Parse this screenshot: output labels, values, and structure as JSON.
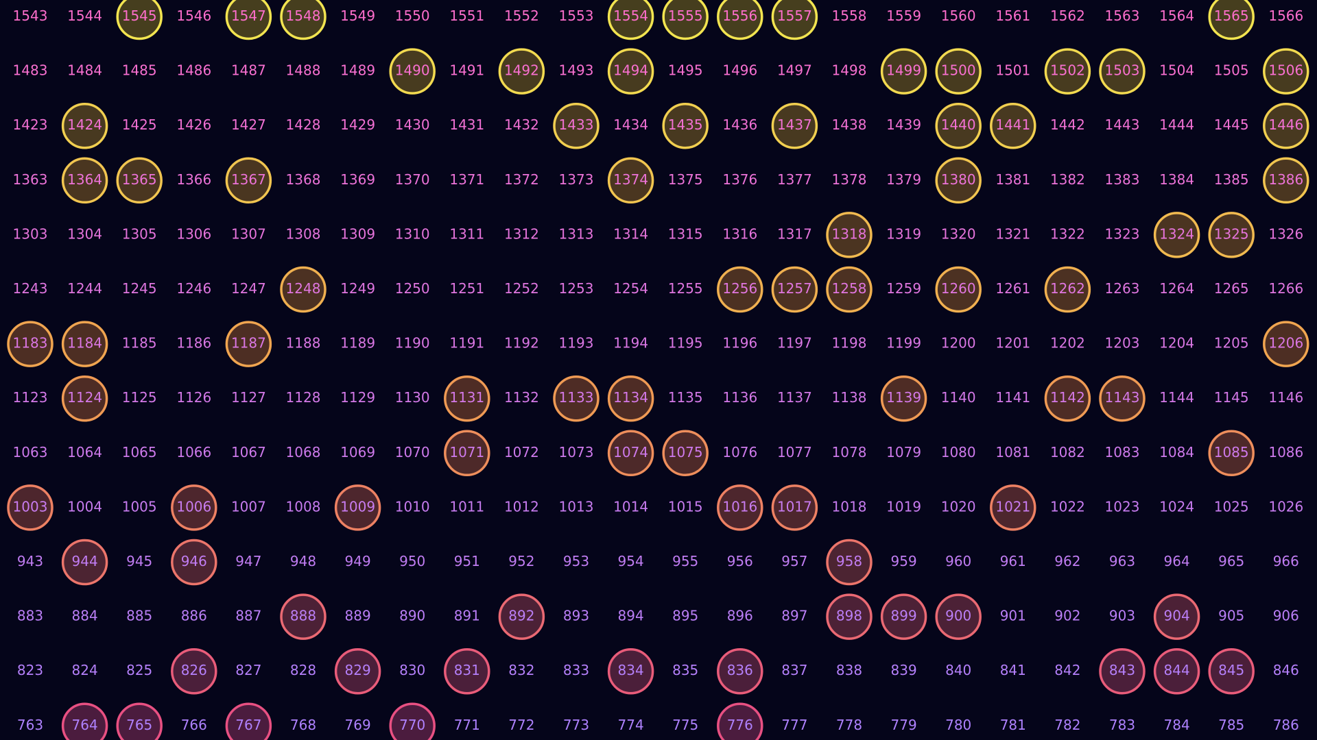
{
  "grid": {
    "rows": [
      {
        "cells": [
          1543,
          1544,
          1545,
          1546,
          1547,
          1548,
          1549,
          1550,
          1551,
          1552,
          1553,
          1554,
          1555,
          1556,
          1557,
          1558,
          1559,
          1560,
          1561,
          1562,
          1563,
          1564,
          1565,
          1566
        ],
        "circled": [
          1545,
          1547,
          1548,
          1554,
          1555,
          1556,
          1557,
          1565
        ]
      },
      {
        "cells": [
          1483,
          1484,
          1485,
          1486,
          1487,
          1488,
          1489,
          1490,
          1491,
          1492,
          1493,
          1494,
          1495,
          1496,
          1497,
          1498,
          1499,
          1500,
          1501,
          1502,
          1503,
          1504,
          1505,
          1506
        ],
        "circled": [
          1490,
          1492,
          1494,
          1499,
          1500,
          1502,
          1503,
          1506
        ]
      },
      {
        "cells": [
          1423,
          1424,
          1425,
          1426,
          1427,
          1428,
          1429,
          1430,
          1431,
          1432,
          1433,
          1434,
          1435,
          1436,
          1437,
          1438,
          1439,
          1440,
          1441,
          1442,
          1443,
          1444,
          1445,
          1446
        ],
        "circled": [
          1424,
          1433,
          1435,
          1437,
          1440,
          1441,
          1446
        ]
      },
      {
        "cells": [
          1363,
          1364,
          1365,
          1366,
          1367,
          1368,
          1369,
          1370,
          1371,
          1372,
          1373,
          1374,
          1375,
          1376,
          1377,
          1378,
          1379,
          1380,
          1381,
          1382,
          1383,
          1384,
          1385,
          1386
        ],
        "circled": [
          1364,
          1365,
          1367,
          1374,
          1380,
          1386
        ]
      },
      {
        "cells": [
          1303,
          1304,
          1305,
          1306,
          1307,
          1308,
          1309,
          1310,
          1311,
          1312,
          1313,
          1314,
          1315,
          1316,
          1317,
          1318,
          1319,
          1320,
          1321,
          1322,
          1323,
          1324,
          1325,
          1326
        ],
        "circled": [
          1318,
          1324,
          1325
        ]
      },
      {
        "cells": [
          1243,
          1244,
          1245,
          1246,
          1247,
          1248,
          1249,
          1250,
          1251,
          1252,
          1253,
          1254,
          1255,
          1256,
          1257,
          1258,
          1259,
          1260,
          1261,
          1262,
          1263,
          1264,
          1265,
          1266
        ],
        "circled": [
          1248,
          1256,
          1257,
          1258,
          1260,
          1262
        ]
      },
      {
        "cells": [
          1183,
          1184,
          1185,
          1186,
          1187,
          1188,
          1189,
          1190,
          1191,
          1192,
          1193,
          1194,
          1195,
          1196,
          1197,
          1198,
          1199,
          1200,
          1201,
          1202,
          1203,
          1204,
          1205,
          1206
        ],
        "circled": [
          1183,
          1184,
          1187,
          1206
        ]
      },
      {
        "cells": [
          1123,
          1124,
          1125,
          1126,
          1127,
          1128,
          1129,
          1130,
          1131,
          1132,
          1133,
          1134,
          1135,
          1136,
          1137,
          1138,
          1139,
          1140,
          1141,
          1142,
          1143,
          1144,
          1145,
          1146
        ],
        "circled": [
          1124,
          1131,
          1133,
          1134,
          1139,
          1142,
          1143
        ]
      },
      {
        "cells": [
          1063,
          1064,
          1065,
          1066,
          1067,
          1068,
          1069,
          1070,
          1071,
          1072,
          1073,
          1074,
          1075,
          1076,
          1077,
          1078,
          1079,
          1080,
          1081,
          1082,
          1083,
          1084,
          1085,
          1086
        ],
        "circled": [
          1071,
          1074,
          1075,
          1085
        ]
      },
      {
        "cells": [
          1003,
          1004,
          1005,
          1006,
          1007,
          1008,
          1009,
          1010,
          1011,
          1012,
          1013,
          1014,
          1015,
          1016,
          1017,
          1018,
          1019,
          1020,
          1021,
          1022,
          1023,
          1024,
          1025,
          1026
        ],
        "circled": [
          1003,
          1006,
          1009,
          1016,
          1017,
          1021
        ]
      },
      {
        "cells": [
          943,
          944,
          945,
          946,
          947,
          948,
          949,
          950,
          951,
          952,
          953,
          954,
          955,
          956,
          957,
          958,
          959,
          960,
          961,
          962,
          963,
          964,
          965,
          966
        ],
        "circled": [
          944,
          946,
          958
        ]
      },
      {
        "cells": [
          883,
          884,
          885,
          886,
          887,
          888,
          889,
          890,
          891,
          892,
          893,
          894,
          895,
          896,
          897,
          898,
          899,
          900,
          901,
          902,
          903,
          904,
          905,
          906
        ],
        "circled": [
          888,
          892,
          898,
          899,
          900,
          904
        ]
      },
      {
        "cells": [
          823,
          824,
          825,
          826,
          827,
          828,
          829,
          830,
          831,
          832,
          833,
          834,
          835,
          836,
          837,
          838,
          839,
          840,
          841,
          842,
          843,
          844,
          845,
          846
        ],
        "circled": [
          826,
          829,
          831,
          834,
          836,
          843,
          844,
          845
        ]
      },
      {
        "cells": [
          763,
          764,
          765,
          766,
          767,
          768,
          769,
          770,
          771,
          772,
          773,
          774,
          775,
          776,
          777,
          778,
          779,
          780,
          781,
          782,
          783,
          784,
          785,
          786
        ],
        "circled": [
          764,
          765,
          767,
          770,
          776
        ]
      }
    ]
  }
}
